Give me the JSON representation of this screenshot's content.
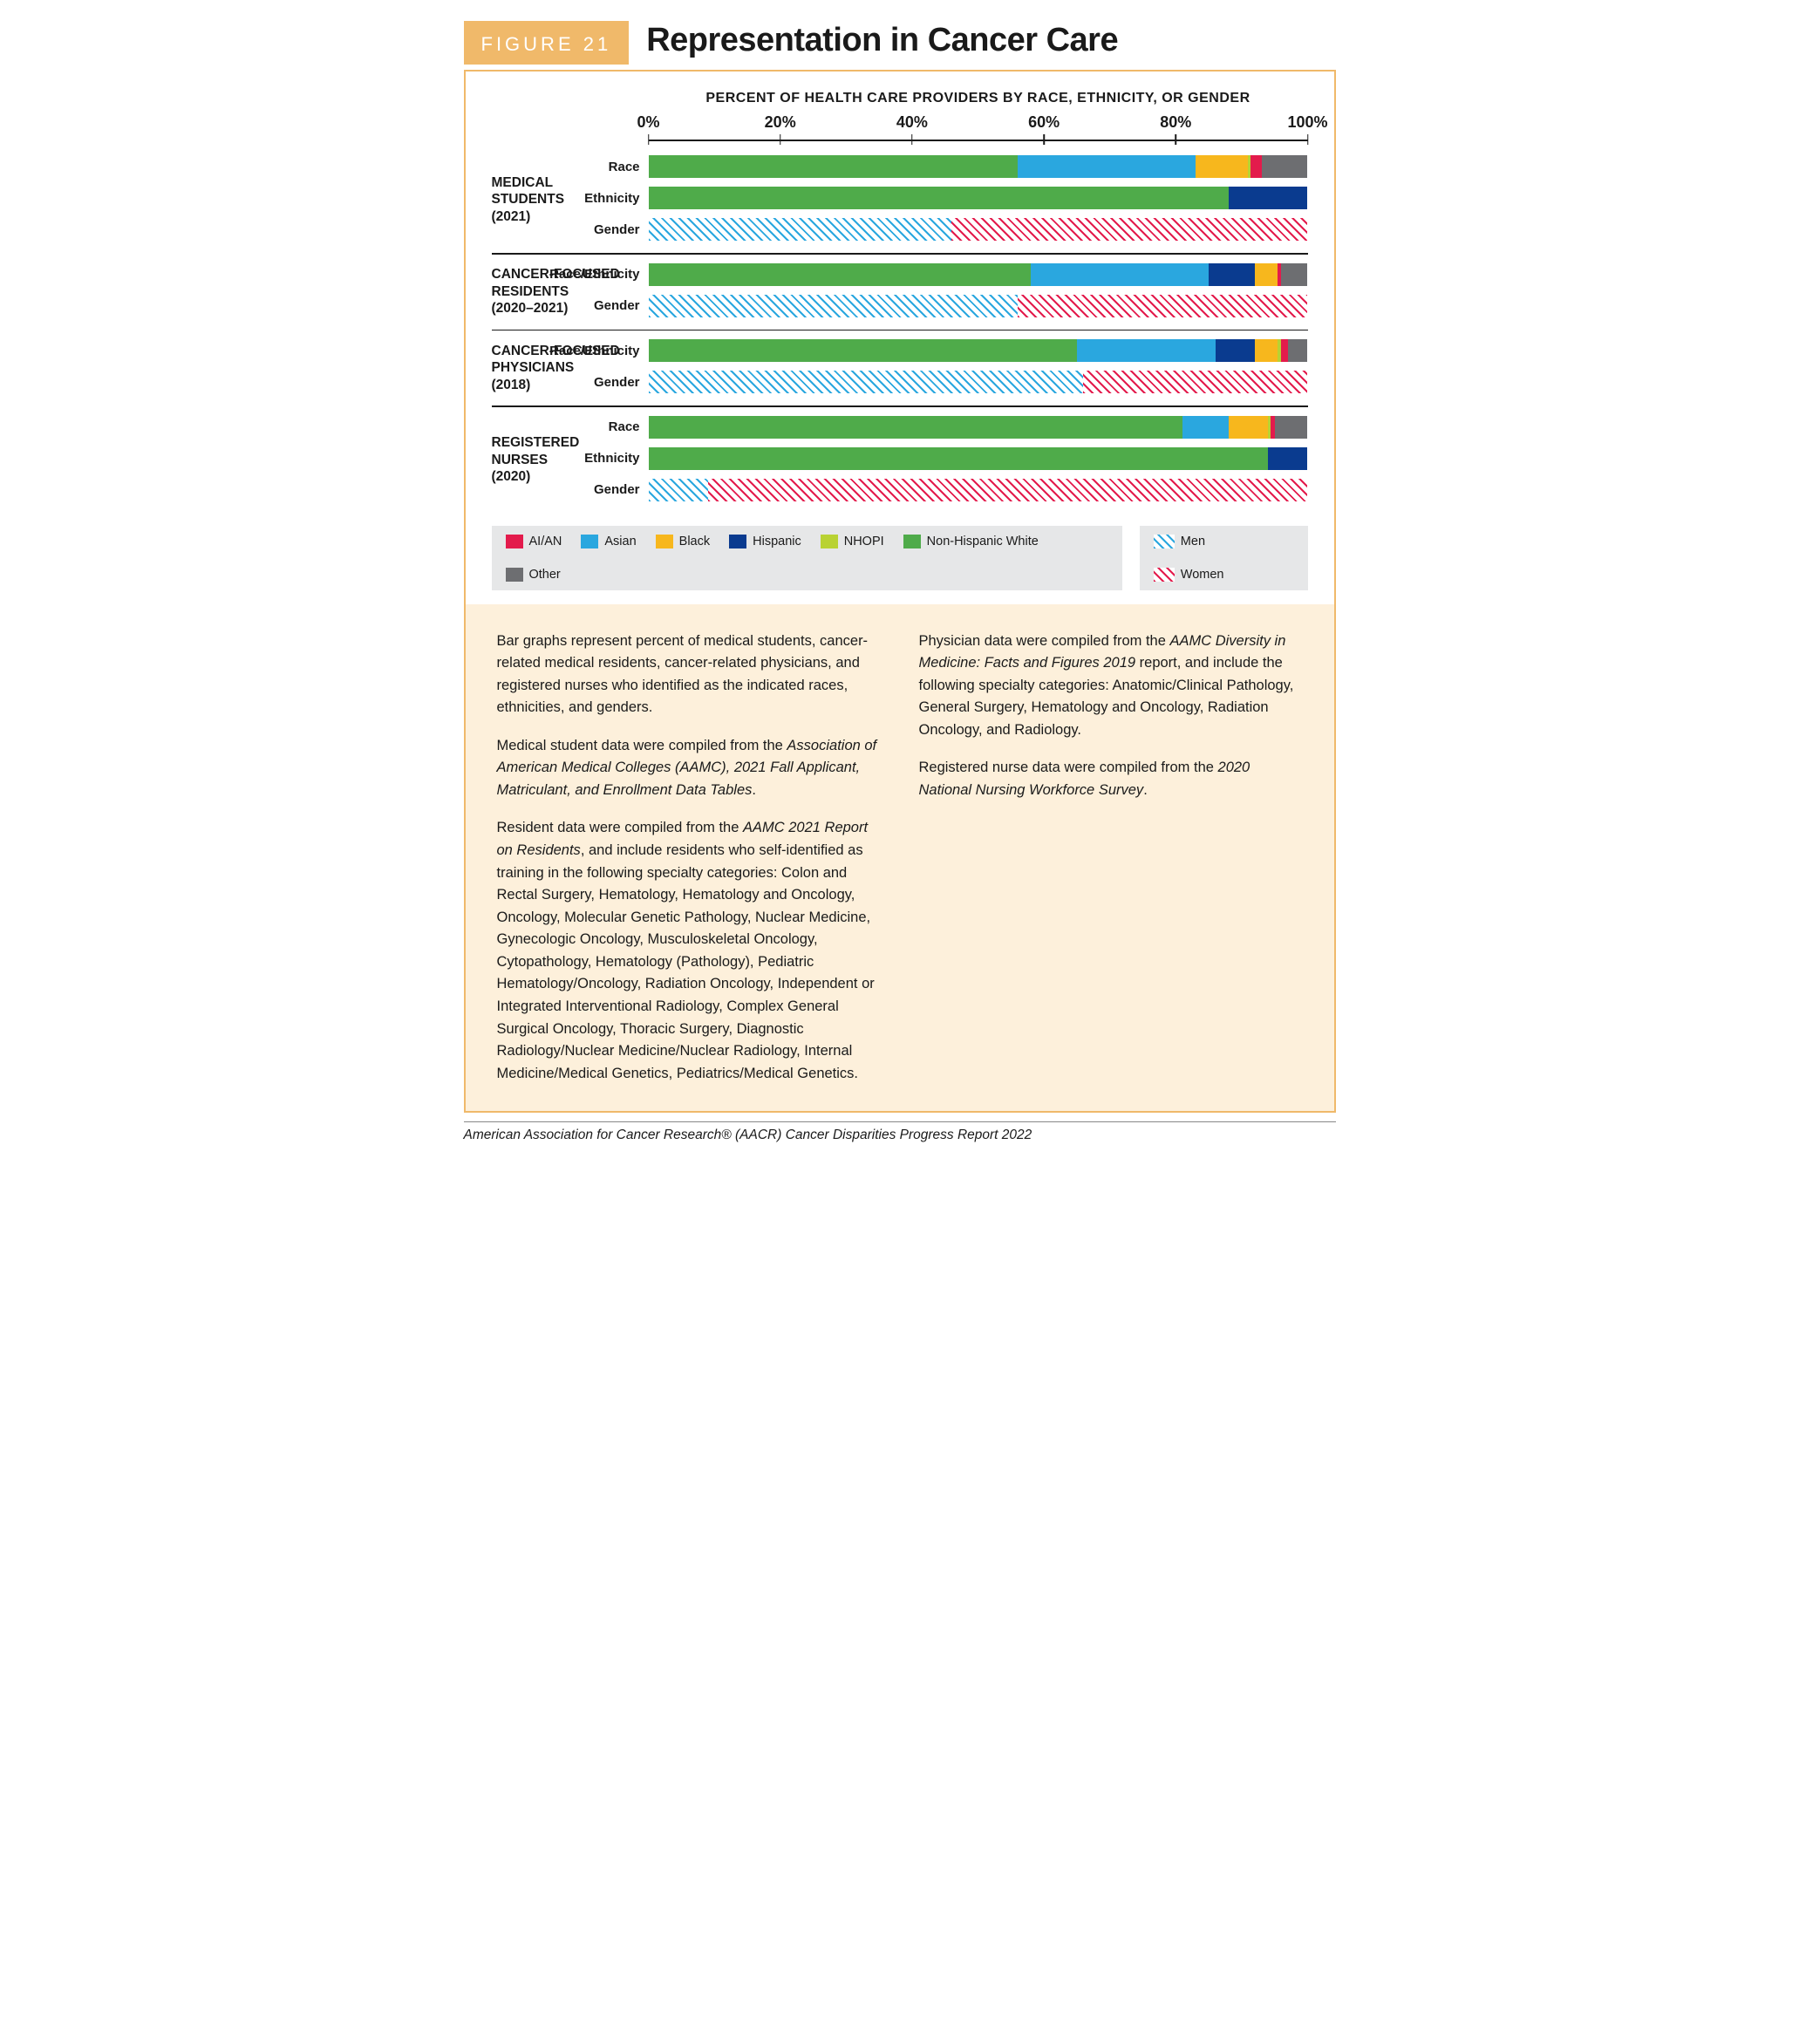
{
  "figure_label": "FIGURE 21",
  "title": "Representation in Cancer Care",
  "chart_title": "PERCENT OF HEALTH CARE PROVIDERS BY RACE, ETHNICITY, OR GENDER",
  "axis": {
    "min": 0,
    "max": 100,
    "ticks": [
      0,
      20,
      40,
      60,
      80,
      100
    ],
    "suffix": "%"
  },
  "colors": {
    "aian": "#e31b4c",
    "asian": "#2aa7df",
    "black": "#f7b71d",
    "hispanic": "#0a3b8f",
    "nhopi": "#b9d233",
    "white": "#4fab4a",
    "other": "#6d6e71",
    "men": "#2aa7df",
    "women": "#e31b4c",
    "hatch_bg": "#ffffff"
  },
  "legend_race": [
    {
      "key": "aian",
      "label": "AI/AN"
    },
    {
      "key": "asian",
      "label": "Asian"
    },
    {
      "key": "black",
      "label": "Black"
    },
    {
      "key": "hispanic",
      "label": "Hispanic"
    },
    {
      "key": "nhopi",
      "label": "NHOPI"
    },
    {
      "key": "white",
      "label": "Non-Hispanic White"
    },
    {
      "key": "other",
      "label": "Other"
    }
  ],
  "legend_gender": [
    {
      "key": "men",
      "label": "Men"
    },
    {
      "key": "women",
      "label": "Women"
    }
  ],
  "groups": [
    {
      "label": "MEDICAL\nSTUDENTS\n(2021)",
      "bars": [
        {
          "label": "Race",
          "type": "solid",
          "segments": [
            {
              "key": "white",
              "value": 56
            },
            {
              "key": "asian",
              "value": 27
            },
            {
              "key": "black",
              "value": 8
            },
            {
              "key": "nhopi",
              "value": 0.3
            },
            {
              "key": "aian",
              "value": 1.7
            },
            {
              "key": "other",
              "value": 7
            }
          ]
        },
        {
          "label": "Ethnicity",
          "type": "solid",
          "segments": [
            {
              "key": "white",
              "value": 88
            },
            {
              "key": "hispanic",
              "value": 12
            }
          ]
        },
        {
          "label": "Gender",
          "type": "hatch",
          "segments": [
            {
              "key": "men",
              "value": 46
            },
            {
              "key": "women",
              "value": 54
            }
          ]
        }
      ]
    },
    {
      "label": "CANCER-FOCUSED\nRESIDENTS\n(2020–2021)",
      "bars": [
        {
          "label": "Race/Ethnicity",
          "type": "solid",
          "segments": [
            {
              "key": "white",
              "value": 58
            },
            {
              "key": "asian",
              "value": 27
            },
            {
              "key": "hispanic",
              "value": 7
            },
            {
              "key": "black",
              "value": 3.5
            },
            {
              "key": "aian",
              "value": 0.5
            },
            {
              "key": "other",
              "value": 4
            }
          ]
        },
        {
          "label": "Gender",
          "type": "hatch",
          "segments": [
            {
              "key": "men",
              "value": 56
            },
            {
              "key": "women",
              "value": 44
            }
          ]
        }
      ]
    },
    {
      "label": "CANCER-FOCUSED\nPHYSICIANS\n(2018)",
      "bars": [
        {
          "label": "Race/Ethnicity",
          "type": "solid",
          "segments": [
            {
              "key": "white",
              "value": 65
            },
            {
              "key": "asian",
              "value": 21
            },
            {
              "key": "hispanic",
              "value": 6
            },
            {
              "key": "black",
              "value": 3.5
            },
            {
              "key": "nhopi",
              "value": 0.5
            },
            {
              "key": "aian",
              "value": 1
            },
            {
              "key": "other",
              "value": 3
            }
          ]
        },
        {
          "label": "Gender",
          "type": "hatch",
          "segments": [
            {
              "key": "men",
              "value": 66
            },
            {
              "key": "women",
              "value": 34
            }
          ]
        }
      ]
    },
    {
      "label": "REGISTERED\nNURSES\n(2020)",
      "bars": [
        {
          "label": "Race",
          "type": "solid",
          "segments": [
            {
              "key": "white",
              "value": 81
            },
            {
              "key": "asian",
              "value": 7
            },
            {
              "key": "black",
              "value": 6
            },
            {
              "key": "nhopi",
              "value": 0.4
            },
            {
              "key": "aian",
              "value": 0.6
            },
            {
              "key": "other",
              "value": 5
            }
          ]
        },
        {
          "label": "Ethnicity",
          "type": "solid",
          "segments": [
            {
              "key": "white",
              "value": 94
            },
            {
              "key": "hispanic",
              "value": 6
            }
          ]
        },
        {
          "label": "Gender",
          "type": "hatch",
          "segments": [
            {
              "key": "men",
              "value": 9
            },
            {
              "key": "women",
              "value": 91
            }
          ]
        }
      ]
    }
  ],
  "caption_paragraphs": [
    "Bar graphs represent percent of medical students, cancer-related medical residents, cancer-related physicians, and registered nurses who identified as the indicated races, ethnicities, and genders.",
    "Medical student data were compiled from the <em>Association of American Medical Colleges (AAMC), 2021 Fall Applicant, Matriculant, and Enrollment Data Tables</em>.",
    "Resident data were compiled from the <em>AAMC 2021 Report on Residents</em>, and include residents who self-identified as training in the following specialty categories: Colon and Rectal Surgery, Hematology, Hematology and Oncology, Oncology, Molecular Genetic Pathology, Nuclear Medicine, Gynecologic Oncology, Musculoskeletal Oncology, Cytopathology, Hematology (Pathology), Pediatric Hematology/Oncology, Radiation Oncology, Independent or Integrated Interventional Radiology, Complex General Surgical Oncology, Thoracic Surgery, Diagnostic Radiology/Nuclear Medicine/Nuclear Radiology, Internal Medicine/Medical Genetics, Pediatrics/Medical Genetics.",
    "Physician data were compiled from the <em>AAMC Diversity in Medicine: Facts and Figures 2019</em> report, and include the following specialty categories: Anatomic/Clinical Pathology, General Surgery, Hematology and Oncology, Radiation Oncology, and Radiology.",
    "Registered nurse data were compiled from the <em>2020 National Nursing Workforce Survey</em>."
  ],
  "source_line": "American Association for Cancer Research® (AACR) Cancer Disparities Progress Report 2022"
}
